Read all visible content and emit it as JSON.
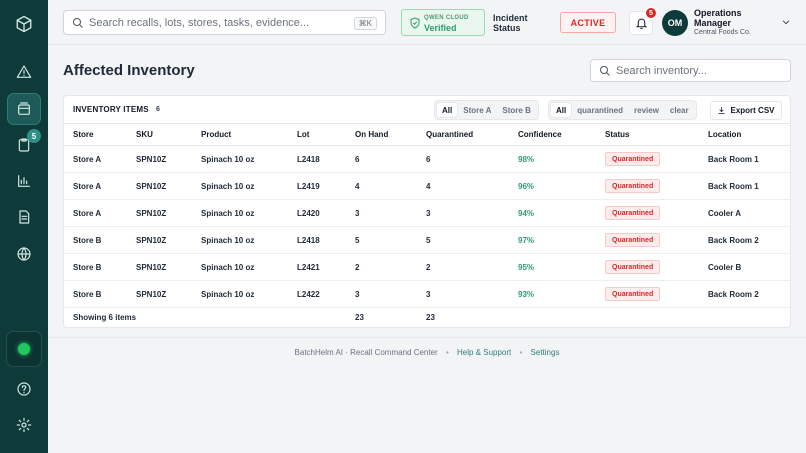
{
  "topbar": {
    "search_placeholder": "Search recalls, lots, stores, tasks, evidence...",
    "search_shortcut": "⌘K",
    "cloud_label": "QWEN CLOUD",
    "cloud_status": "Verified",
    "incident_label": "Incident Status",
    "incident_status": "ACTIVE",
    "notification_count": "5",
    "user_initials": "OM",
    "user_name": "Operations Manager",
    "user_org": "Central Foods Co."
  },
  "sidebar": {
    "badge_count": "5",
    "icons": [
      "dashboard-logo-icon",
      "alert-icon",
      "inventory-icon",
      "clipboard-icon",
      "chart-icon",
      "document-icon",
      "globe-icon",
      "help-icon",
      "settings-icon"
    ]
  },
  "main": {
    "title": "Affected Inventory",
    "search_placeholder": "Search inventory..."
  },
  "panel": {
    "title": "INVENTORY ITEMS",
    "count": "6",
    "store_filters": [
      "All",
      "Store A",
      "Store B"
    ],
    "status_filters": [
      "All",
      "quarantined",
      "review",
      "clear"
    ],
    "export_label": "Export CSV",
    "columns": [
      "Store",
      "SKU",
      "Product",
      "Lot",
      "On Hand",
      "Quarantined",
      "Confidence",
      "Status",
      "Location"
    ],
    "rows": [
      {
        "store": "Store A",
        "sku": "SPN10Z",
        "product": "Spinach 10 oz",
        "lot": "L2418",
        "on_hand": "6",
        "quarantined": "6",
        "confidence": "98%",
        "status": "Quarantined",
        "location": "Back Room 1"
      },
      {
        "store": "Store A",
        "sku": "SPN10Z",
        "product": "Spinach 10 oz",
        "lot": "L2419",
        "on_hand": "4",
        "quarantined": "4",
        "confidence": "96%",
        "status": "Quarantined",
        "location": "Back Room 1"
      },
      {
        "store": "Store A",
        "sku": "SPN10Z",
        "product": "Spinach 10 oz",
        "lot": "L2420",
        "on_hand": "3",
        "quarantined": "3",
        "confidence": "94%",
        "status": "Quarantined",
        "location": "Cooler A"
      },
      {
        "store": "Store B",
        "sku": "SPN10Z",
        "product": "Spinach 10 oz",
        "lot": "L2418",
        "on_hand": "5",
        "quarantined": "5",
        "confidence": "97%",
        "status": "Quarantined",
        "location": "Back Room 2"
      },
      {
        "store": "Store B",
        "sku": "SPN10Z",
        "product": "Spinach 10 oz",
        "lot": "L2421",
        "on_hand": "2",
        "quarantined": "2",
        "confidence": "95%",
        "status": "Quarantined",
        "location": "Cooler B"
      },
      {
        "store": "Store B",
        "sku": "SPN10Z",
        "product": "Spinach 10 oz",
        "lot": "L2422",
        "on_hand": "3",
        "quarantined": "3",
        "confidence": "93%",
        "status": "Quarantined",
        "location": "Back Room 2"
      }
    ],
    "footer": {
      "showing": "Showing 6 items",
      "total_on_hand": "23",
      "total_quarantined": "23"
    }
  },
  "footer": {
    "brand": "BatchHelm AI · Recall Command Center",
    "help": "Help & Support",
    "settings": "Settings"
  },
  "colors": {
    "sidebar": "#0f3a3a",
    "accent": "#2f9b6f",
    "danger": "#dc2626"
  }
}
